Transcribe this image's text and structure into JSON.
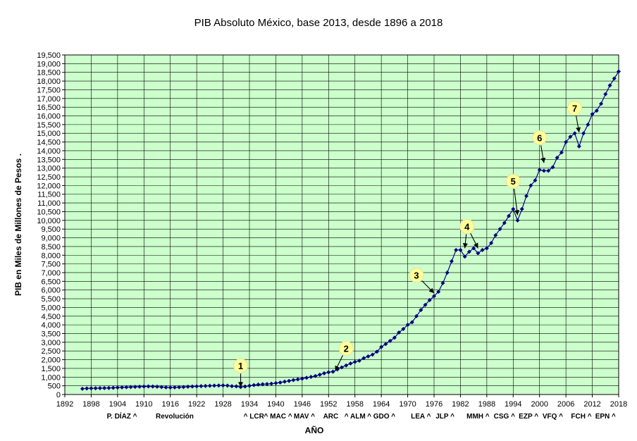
{
  "chart_data": {
    "type": "line",
    "title": "PIB Absoluto México, base 2013, desde 1896 a 2018",
    "xlabel": "AÑO",
    "ylabel": "PIB   en Miles de Millones de Pesos   .",
    "xlim": [
      1892,
      2018
    ],
    "ylim": [
      0,
      19500
    ],
    "x_ticks": [
      1892,
      1898,
      1904,
      1910,
      1916,
      1922,
      1928,
      1934,
      1940,
      1946,
      1952,
      1958,
      1964,
      1970,
      1976,
      1982,
      1988,
      1994,
      2000,
      2006,
      2012,
      2018
    ],
    "y_ticks": [
      0,
      500,
      1000,
      1500,
      2000,
      2500,
      3000,
      3500,
      4000,
      4500,
      5000,
      5500,
      6000,
      6500,
      7000,
      7500,
      8000,
      8500,
      9000,
      9500,
      10000,
      10500,
      11000,
      11500,
      12000,
      12500,
      13000,
      13500,
      14000,
      14500,
      15000,
      15500,
      16000,
      16500,
      17000,
      17500,
      18000,
      18500,
      19000,
      19500
    ],
    "y_tick_labels": [
      "0",
      "500",
      "1,000",
      "1,500",
      "2,000",
      "2,500",
      "3,000",
      "3,500",
      "4,000",
      "4,500",
      "5,000",
      "5,500",
      "6,000",
      "6,500",
      "7,000",
      "7,500",
      "8,000",
      "8,500",
      "9,000",
      "9,500",
      "10,000",
      "10,500",
      "11,000",
      "11,500",
      "12,000",
      "12,500",
      "13,000",
      "13,500",
      "14,000",
      "14,500",
      "15,000",
      "15,500",
      "16,000",
      "16,500",
      "17,000",
      "17,500",
      "18,000",
      "18,500",
      "19,000",
      "19,500"
    ],
    "grid": true,
    "colors": {
      "plot_background": "#ccffcc",
      "line": "#000080",
      "marker": "#000080",
      "grid": "#000000",
      "callout": "#ffff99"
    },
    "series": [
      {
        "x": [
          1896,
          1897,
          1898,
          1899,
          1900,
          1901,
          1902,
          1903,
          1904,
          1905,
          1906,
          1907,
          1908,
          1909,
          1910,
          1911,
          1912,
          1913,
          1914,
          1915,
          1916,
          1917,
          1918,
          1919,
          1920,
          1921,
          1922,
          1923,
          1924,
          1925,
          1926,
          1927,
          1928,
          1929,
          1930,
          1931,
          1932,
          1933,
          1934,
          1935,
          1936,
          1937,
          1938,
          1939,
          1940,
          1941,
          1942,
          1943,
          1944,
          1945,
          1946,
          1947,
          1948,
          1949,
          1950,
          1951,
          1952,
          1953,
          1954,
          1955,
          1956,
          1957,
          1958,
          1959,
          1960,
          1961,
          1962,
          1963,
          1964,
          1965,
          1966,
          1967,
          1968,
          1969,
          1970,
          1971,
          1972,
          1973,
          1974,
          1975,
          1976,
          1977,
          1978,
          1979,
          1980,
          1981,
          1982,
          1983,
          1984,
          1985,
          1986,
          1987,
          1988,
          1989,
          1990,
          1991,
          1992,
          1993,
          1994,
          1995,
          1996,
          1997,
          1998,
          1999,
          2000,
          2001,
          2002,
          2003,
          2004,
          2005,
          2006,
          2007,
          2008,
          2009,
          2010,
          2011,
          2012,
          2013,
          2014,
          2015,
          2016,
          2017,
          2018
        ],
        "values": [
          330,
          350,
          355,
          360,
          365,
          370,
          375,
          385,
          400,
          410,
          420,
          430,
          440,
          450,
          460,
          465,
          460,
          450,
          430,
          410,
          400,
          410,
          420,
          430,
          450,
          460,
          470,
          480,
          490,
          500,
          510,
          515,
          520,
          510,
          480,
          470,
          430,
          460,
          500,
          540,
          570,
          590,
          600,
          620,
          650,
          690,
          740,
          780,
          830,
          870,
          910,
          960,
          1010,
          1060,
          1140,
          1220,
          1280,
          1310,
          1440,
          1560,
          1670,
          1780,
          1870,
          1940,
          2090,
          2190,
          2290,
          2460,
          2730,
          2900,
          3080,
          3260,
          3560,
          3760,
          4000,
          4150,
          4500,
          4850,
          5150,
          5420,
          5650,
          5900,
          6400,
          7000,
          7650,
          8300,
          8300,
          7920,
          8200,
          8400,
          8110,
          8300,
          8400,
          8700,
          9150,
          9500,
          9850,
          10250,
          10650,
          10000,
          10650,
          11400,
          12000,
          12300,
          12900,
          12850,
          12850,
          13050,
          13600,
          13900,
          14500,
          14800,
          15000,
          14250,
          15000,
          15500,
          16100,
          16300,
          16700,
          17250,
          17750,
          18150,
          18550
        ]
      }
    ],
    "period_labels": [
      {
        "x": 1905,
        "text": "P. DÍAZ   ^"
      },
      {
        "x": 1917,
        "text": "Revolución"
      },
      {
        "x": 1935,
        "text": "^ LCR"
      },
      {
        "x": 1940.5,
        "text": "^  MAC ^"
      },
      {
        "x": 1946.5,
        "text": "MAV  ^"
      },
      {
        "x": 1952.5,
        "text": "ARC"
      },
      {
        "x": 1958,
        "text": "^ ALM"
      },
      {
        "x": 1964,
        "text": "^  GDO ^"
      },
      {
        "x": 1973,
        "text": "LEA ^"
      },
      {
        "x": 1978.5,
        "text": "JLP  ^"
      },
      {
        "x": 1986,
        "text": "MMH ^"
      },
      {
        "x": 1992,
        "text": "CSG  ^"
      },
      {
        "x": 1997.5,
        "text": "EZP  ^"
      },
      {
        "x": 2003,
        "text": "VFQ  ^"
      },
      {
        "x": 2009.5,
        "text": "FCH  ^"
      },
      {
        "x": 2015,
        "text": "EPN  ^"
      }
    ],
    "annotations": [
      {
        "label": "1",
        "x": 1932,
        "y": 430,
        "text_x": 1932,
        "text_y": 1650
      },
      {
        "label": "2",
        "x": 1953.5,
        "y": 1350,
        "text_x": 1956,
        "text_y": 2650
      },
      {
        "label": "3",
        "x": 1976,
        "y": 5820,
        "text_x": 1972,
        "text_y": 6850
      },
      {
        "label": "4",
        "x": 1983,
        "y": 8400,
        "text_x": 1983.5,
        "text_y": 9650
      },
      {
        "label": "4",
        "x": 1986,
        "y": 8400,
        "text_x": 1983.5,
        "text_y": 9650
      },
      {
        "label": "5",
        "x": 1995,
        "y": 10300,
        "text_x": 1994,
        "text_y": 12250
      },
      {
        "label": "6",
        "x": 2001,
        "y": 13300,
        "text_x": 2000,
        "text_y": 14750
      },
      {
        "label": "7",
        "x": 2009,
        "y": 15050,
        "text_x": 2008,
        "text_y": 16450
      }
    ]
  }
}
